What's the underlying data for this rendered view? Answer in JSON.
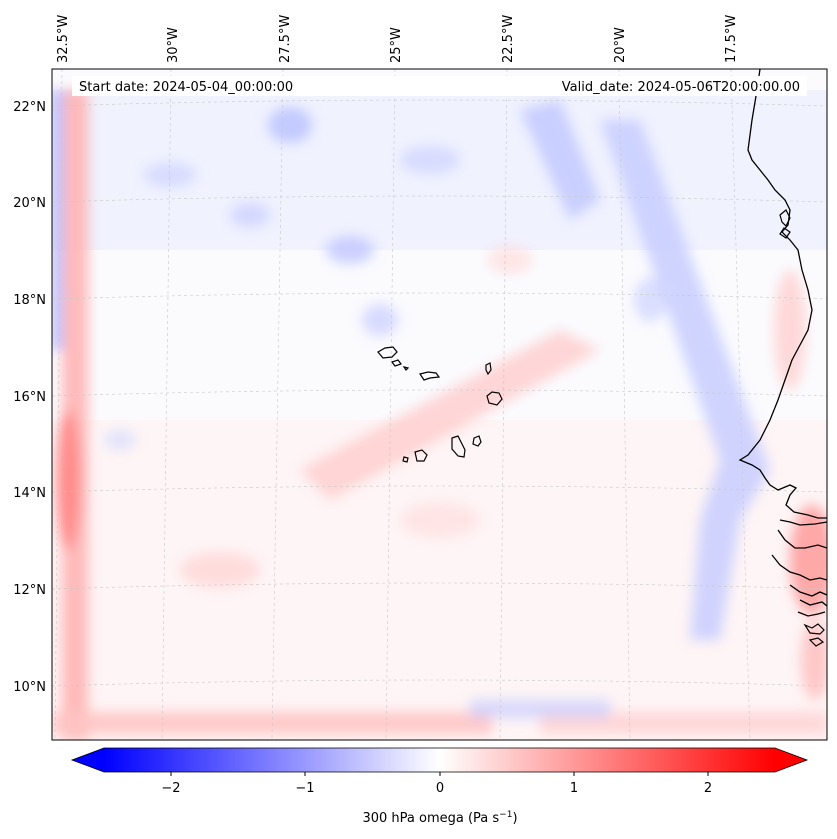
{
  "header": {
    "start_date": "Start date: 2024-05-04_00:00:00",
    "valid_date": "Valid_date: 2024-05-06T20:00:00.00"
  },
  "axes": {
    "lon_labels": [
      "32.5°W",
      "30°W",
      "27.5°W",
      "25°W",
      "22.5°W",
      "20°W",
      "17.5°W"
    ],
    "lat_labels": [
      "22°N",
      "20°N",
      "18°N",
      "16°N",
      "14°N",
      "12°N",
      "10°N"
    ]
  },
  "colorbar": {
    "ticks": [
      "−2",
      "−1",
      "0",
      "1",
      "2"
    ],
    "label_main": "300 hPa omega (Pa s",
    "label_sup": "−1",
    "label_end": ")",
    "range": [
      -2.5,
      2.5
    ],
    "neg_color": "#0000ff",
    "pos_color": "#ff0000"
  },
  "colors": {
    "coast": "#000000",
    "grid": "#bbbbbb"
  }
}
